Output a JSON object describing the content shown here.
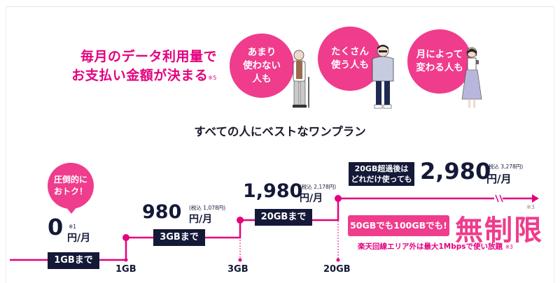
{
  "headline": {
    "line1": "毎月のデータ利用量で",
    "line2": "お支払い金額が決まる",
    "note": "※5"
  },
  "personas": [
    {
      "label": "あまり\n使わない\n人も",
      "icon": "elderly-person-icon"
    },
    {
      "label": "たくさん\n使う人も",
      "icon": "young-man-icon"
    },
    {
      "label": "月によって\n変わる人も",
      "icon": "woman-icon"
    }
  ],
  "subtitle": "すべての人にベストなワンプラン",
  "tiers": [
    {
      "price": "0",
      "unit": "円/月",
      "note": "※1",
      "tax": "",
      "cap": "1GBまで"
    },
    {
      "price": "980",
      "unit": "円/月",
      "note": "",
      "tax": "(税込 1,078円)",
      "cap": "3GBまで"
    },
    {
      "price": "1,980",
      "unit": "円/月",
      "note": "",
      "tax": "(税込 2,178円)",
      "cap": "20GBまで"
    },
    {
      "price": "2,980",
      "unit": "円/月",
      "note": "",
      "tax": "(税込 3,278円)",
      "cap": "20GB超過後は\nどれだけ使っても"
    }
  ],
  "bubble": "圧倒的に\nおトク！",
  "axis_labels": [
    "1GB",
    "3GB",
    "20GB"
  ],
  "unlimited": {
    "box": "50GBでも100GBでも!",
    "big": "無制限",
    "note": "※3",
    "speed": "楽天回線エリア外は最大1Mbpsで使い放題",
    "speed_note": "※3"
  },
  "colors": {
    "accent": "#ef3c8c",
    "dark": "#141938"
  }
}
